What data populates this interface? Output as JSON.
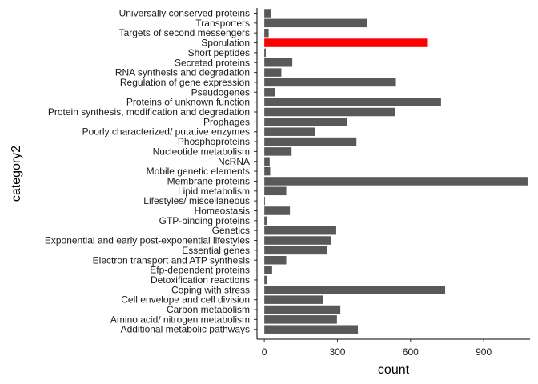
{
  "chart_data": {
    "type": "bar",
    "orientation": "horizontal",
    "xlabel": "count",
    "ylabel": "category2",
    "xlim": [
      -30,
      1090
    ],
    "xticks": [
      0,
      300,
      600,
      900
    ],
    "grid": false,
    "highlight_category": "Sporulation",
    "colors": {
      "bar": "#595959",
      "highlight": "#ff0000"
    },
    "categories": [
      "Universally conserved proteins",
      "Transporters",
      "Targets of second messengers",
      "Sporulation",
      "Short peptides",
      "Secreted proteins",
      "RNA synthesis and degradation",
      "Regulation of gene expression",
      "Pseudogenes",
      "Proteins of unknown function",
      "Protein synthesis, modification and degradation",
      "Prophages",
      "Poorly characterized/ putative enzymes",
      "Phosphoproteins",
      "Nucleotide metabolism",
      "NcRNA",
      "Mobile genetic elements",
      "Membrane proteins",
      "Lipid metabolism",
      "Lifestyles/ miscellaneous",
      "Homeostasis",
      "GTP-binding proteins",
      "Genetics",
      "Exponential and early post-exponential lifestyles",
      "Essential genes",
      "Electron transport and ATP synthesis",
      "Efp-dependent proteins",
      "Detoxification reactions",
      "Coping with stress",
      "Cell envelope and cell division",
      "Carbon metabolism",
      "Amino acid/ nitrogen metabolism",
      "Additional metabolic pathways"
    ],
    "values": [
      28,
      420,
      18,
      668,
      6,
      115,
      70,
      540,
      45,
      725,
      535,
      340,
      208,
      378,
      112,
      22,
      24,
      1080,
      90,
      3,
      105,
      10,
      295,
      275,
      258,
      90,
      32,
      10,
      742,
      240,
      312,
      298,
      384
    ]
  }
}
